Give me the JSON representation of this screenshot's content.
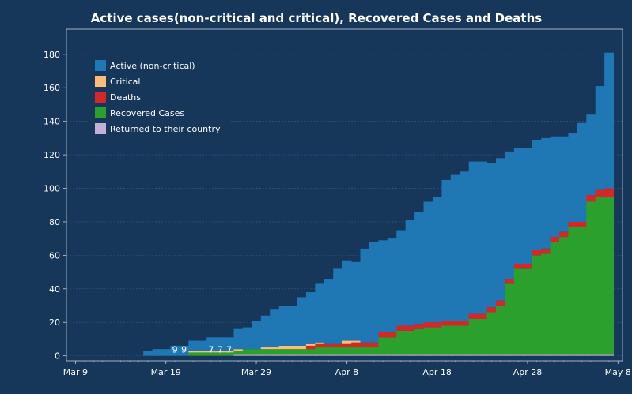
{
  "chart_data": {
    "type": "bar",
    "stacked": true,
    "title": "Active cases(non-critical and critical), Recovered Cases and Deaths",
    "xlabel": "",
    "ylabel": "",
    "x_start": "2020-03-09",
    "xlim": [
      -1,
      60.5
    ],
    "ylim": [
      -3,
      195
    ],
    "grid": "horizontal dashed",
    "legend_position": "top-left",
    "x_ticks": [
      {
        "label": "Mar 9",
        "day": 0
      },
      {
        "label": "Mar 19",
        "day": 10
      },
      {
        "label": "Mar 29",
        "day": 20
      },
      {
        "label": "Apr 8",
        "day": 30
      },
      {
        "label": "Apr 18",
        "day": 40
      },
      {
        "label": "Apr 28",
        "day": 50
      },
      {
        "label": "May 8",
        "day": 60
      }
    ],
    "y_ticks": [
      0,
      20,
      40,
      60,
      80,
      100,
      120,
      140,
      160,
      180
    ],
    "series": [
      {
        "name": "Returned to their country",
        "color": "#c5b0d5",
        "values": [
          0,
          0,
          0,
          0,
          0,
          0,
          0,
          0,
          0,
          0,
          0,
          0,
          0,
          0,
          0,
          0,
          0,
          0,
          1,
          1,
          1,
          1,
          1,
          1,
          1,
          1,
          1,
          1,
          1,
          1,
          1,
          1,
          1,
          1,
          1,
          1,
          1,
          1,
          1,
          1,
          1,
          1,
          1,
          1,
          1,
          1,
          1,
          1,
          1,
          1,
          1,
          1,
          1,
          1,
          1,
          1,
          1,
          1,
          1,
          1
        ]
      },
      {
        "name": "Recovered Cases",
        "color": "#2ca02c",
        "values": [
          0,
          0,
          0,
          0,
          0,
          0,
          0,
          0,
          0,
          0,
          0,
          0,
          0,
          2,
          2,
          2,
          2,
          2,
          2,
          3,
          3,
          3,
          3,
          3,
          3,
          3,
          3,
          4,
          4,
          4,
          4,
          4,
          4,
          4,
          10,
          10,
          14,
          14,
          15,
          16,
          16,
          17,
          17,
          17,
          21,
          21,
          25,
          29,
          42,
          51,
          51,
          59,
          60,
          67,
          70,
          76,
          76,
          91,
          94,
          94
        ]
      },
      {
        "name": "Deaths",
        "color": "#d62728",
        "values": [
          0,
          0,
          0,
          0,
          0,
          0,
          0,
          0,
          0,
          0,
          0,
          0,
          0,
          0,
          0,
          0,
          0,
          0,
          0,
          0,
          0,
          0,
          0,
          0,
          0,
          0,
          2,
          2,
          2,
          2,
          2,
          3,
          3,
          3,
          3,
          3,
          3,
          3,
          3,
          3,
          3,
          3,
          3,
          3,
          3,
          3,
          3,
          3,
          3,
          3,
          3,
          3,
          3,
          3,
          3,
          3,
          3,
          4,
          4,
          5
        ]
      },
      {
        "name": "Critical",
        "color": "#ffbb78",
        "values": [
          0,
          0,
          0,
          0,
          0,
          0,
          0,
          0,
          0,
          0,
          0,
          0,
          0,
          1,
          1,
          1,
          1,
          1,
          1,
          0,
          0,
          1,
          1,
          2,
          2,
          2,
          1,
          1,
          0,
          0,
          2,
          1,
          0,
          0,
          0,
          0,
          0,
          0,
          0,
          0,
          0,
          0,
          0,
          0,
          0,
          0,
          0,
          0,
          0,
          0,
          0,
          0,
          0,
          0,
          0,
          0,
          0,
          0,
          0,
          0
        ]
      },
      {
        "name": "Active (non-critical)",
        "color": "#1f77b4",
        "values": [
          0,
          0,
          0,
          0,
          0,
          0,
          0,
          0,
          3,
          4,
          4,
          6,
          6,
          6,
          6,
          8,
          8,
          8,
          12,
          13,
          17,
          19,
          23,
          24,
          24,
          29,
          31,
          35,
          39,
          45,
          48,
          47,
          56,
          60,
          55,
          56,
          57,
          63,
          67,
          72,
          75,
          84,
          87,
          89,
          91,
          91,
          86,
          85,
          76,
          69,
          69,
          66,
          66,
          60,
          57,
          53,
          59,
          48,
          62,
          81
        ]
      }
    ],
    "annotations": [
      {
        "text": "9",
        "day": 11
      },
      {
        "text": "9",
        "day": 12
      },
      {
        "text": "7",
        "day": 15
      },
      {
        "text": "7",
        "day": 16
      },
      {
        "text": "7",
        "day": 17
      }
    ]
  }
}
